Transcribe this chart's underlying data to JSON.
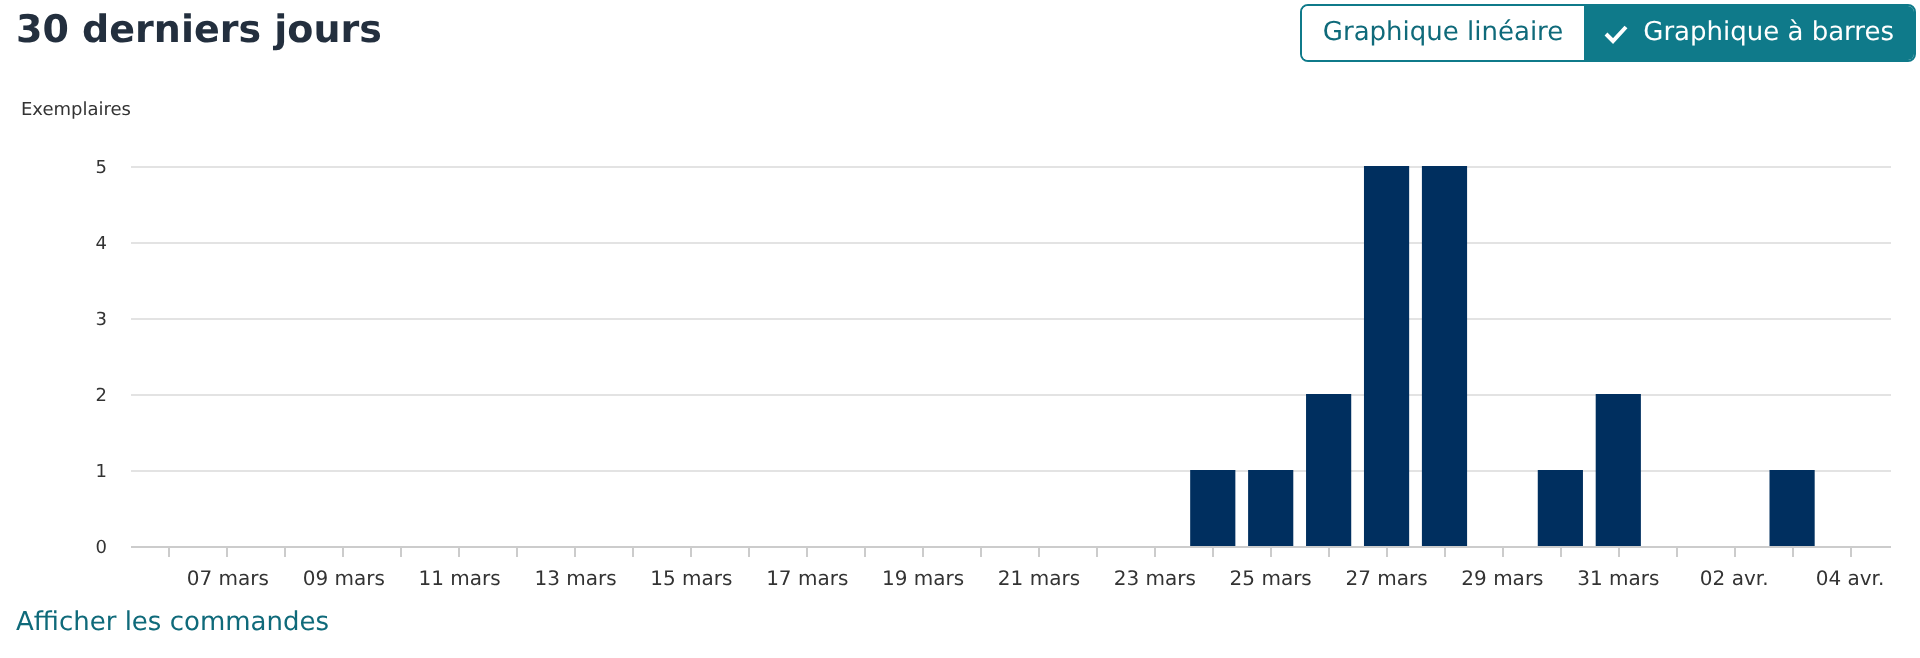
{
  "chart_data": {
    "type": "bar",
    "title": "30 derniers jours",
    "ylabel": "Exemplaires",
    "categories": [
      null,
      "07 mars",
      null,
      "09 mars",
      null,
      "11 mars",
      null,
      "13 mars",
      null,
      "15 mars",
      null,
      "17 mars",
      null,
      "19 mars",
      null,
      "21 mars",
      null,
      "23 mars",
      null,
      "25 mars",
      null,
      "27 mars",
      null,
      "29 mars",
      null,
      "31 mars",
      null,
      "02 avr.",
      null,
      "04 avr."
    ],
    "values": [
      0,
      0,
      0,
      0,
      0,
      0,
      0,
      0,
      0,
      0,
      0,
      0,
      0,
      0,
      0,
      0,
      0,
      0,
      1,
      1,
      2,
      5,
      5,
      0,
      1,
      2,
      0,
      0,
      1,
      0
    ],
    "color": "#002f5f",
    "ylim": [
      0,
      5
    ],
    "yticks": [
      0,
      1,
      2,
      3,
      4,
      5
    ],
    "grid": "y",
    "annotations": [
      "Graphique linéaire",
      "Graphique à barres",
      "Afficher les commandes"
    ]
  }
}
